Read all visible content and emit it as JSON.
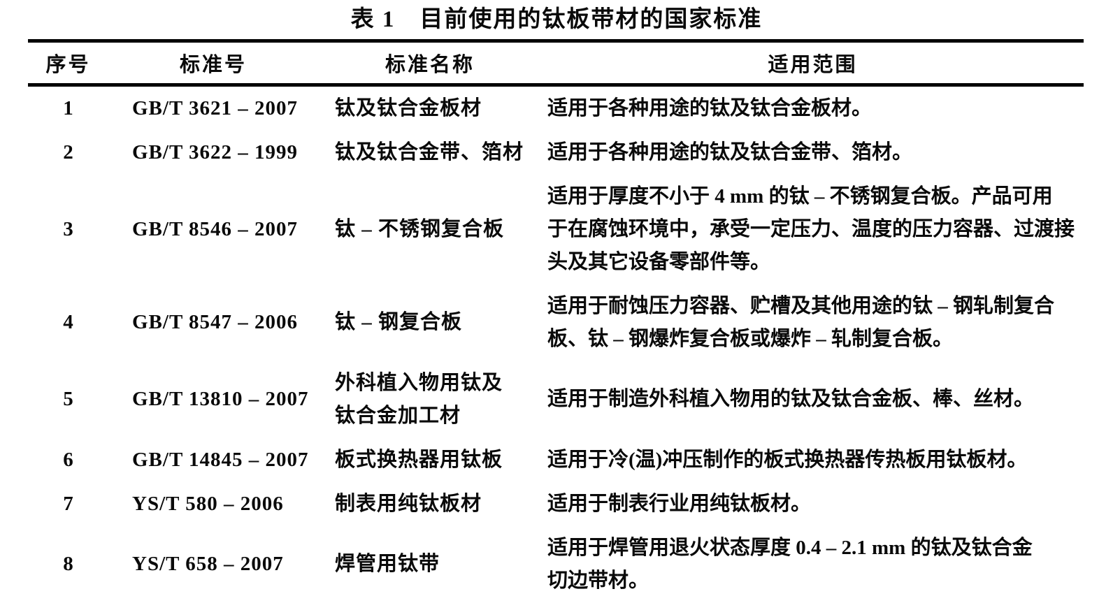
{
  "table": {
    "title": "表 1　目前使用的钛板带材的国家标准",
    "columns": [
      "序号",
      "标准号",
      "标准名称",
      "适用范围"
    ],
    "rows": [
      {
        "no": "1",
        "standard_no": "GB/T 3621 – 2007",
        "name": "钛及钛合金板材",
        "scope": "适用于各种用途的钛及钛合金板材。"
      },
      {
        "no": "2",
        "standard_no": "GB/T 3622 – 1999",
        "name": "钛及钛合金带、箔材",
        "scope": "适用于各种用途的钛及钛合金带、箔材。"
      },
      {
        "no": "3",
        "standard_no": "GB/T 8546 – 2007",
        "name": "钛 – 不锈钢复合板",
        "scope": "适用于厚度不小于 4 mm 的钛 – 不锈钢复合板。产品可用\n于在腐蚀环境中，承受一定压力、温度的压力容器、过渡接\n头及其它设备零部件等。"
      },
      {
        "no": "4",
        "standard_no": "GB/T 8547 – 2006",
        "name": "钛 – 钢复合板",
        "scope": "适用于耐蚀压力容器、贮槽及其他用途的钛 – 钢轧制复合\n板、钛 – 钢爆炸复合板或爆炸 – 轧制复合板。"
      },
      {
        "no": "5",
        "standard_no": "GB/T 13810 – 2007",
        "name": "外科植入物用钛及\n钛合金加工材",
        "scope": "适用于制造外科植入物用的钛及钛合金板、棒、丝材。"
      },
      {
        "no": "6",
        "standard_no": "GB/T 14845 – 2007",
        "name": "板式换热器用钛板",
        "scope": "适用于冷(温)冲压制作的板式换热器传热板用钛板材。"
      },
      {
        "no": "7",
        "standard_no": "YS/T 580 – 2006",
        "name": "制表用纯钛板材",
        "scope": "适用于制表行业用纯钛板材。"
      },
      {
        "no": "8",
        "standard_no": "YS/T 658 – 2007",
        "name": "焊管用钛带",
        "scope": "适用于焊管用退火状态厚度 0.4 – 2.1 mm 的钛及钛合金\n切边带材。"
      }
    ]
  }
}
